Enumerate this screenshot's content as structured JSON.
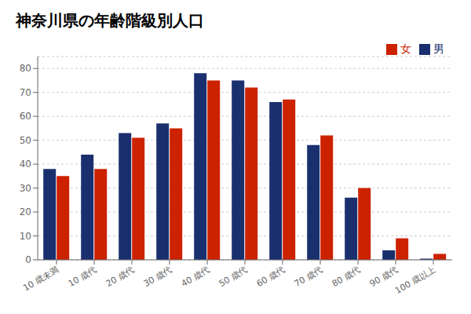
{
  "chart_data": {
    "type": "bar",
    "title": "神奈川県の年齢階級別人口",
    "categories": [
      "10 歳未満",
      "10 歳代",
      "20 歳代",
      "30 歳代",
      "40 歳代",
      "50 歳代",
      "60 歳代",
      "70 歳代",
      "80 歳代",
      "90 歳代",
      "100 歳以上"
    ],
    "series": [
      {
        "name": "男",
        "color": "#1a2f6e",
        "values": [
          38,
          44,
          53,
          57,
          78,
          75,
          66,
          48,
          26,
          4,
          0.5
        ]
      },
      {
        "name": "女",
        "color": "#cc2200",
        "values": [
          35,
          38,
          51,
          55,
          75,
          72,
          67,
          52,
          30,
          9,
          2.5
        ]
      }
    ],
    "ylim": [
      0,
      85
    ],
    "yticks": [
      0,
      10,
      20,
      30,
      40,
      50,
      60,
      70,
      80
    ],
    "grid": true,
    "legend": "upper right"
  }
}
